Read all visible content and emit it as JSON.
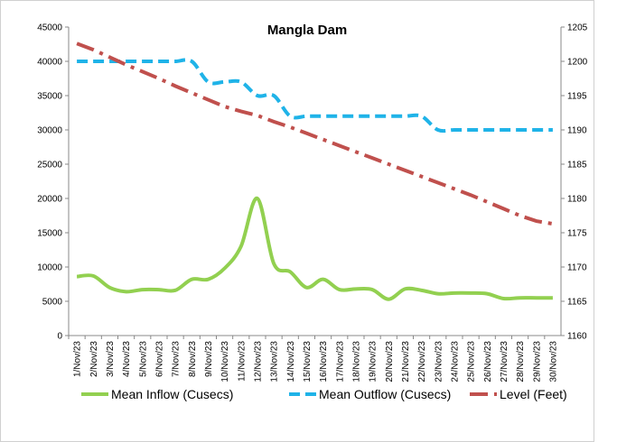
{
  "chart_data": {
    "type": "line",
    "title": "Mangla Dam",
    "categories": [
      "1/Nov/23",
      "2/Nov/23",
      "3/Nov/23",
      "4/Nov/23",
      "5/Nov/23",
      "6/Nov/23",
      "7/Nov/23",
      "8/Nov/23",
      "9/Nov/23",
      "10/Nov/23",
      "11/Nov/23",
      "12/Nov/23",
      "13/Nov/23",
      "14/Nov/23",
      "15/Nov/23",
      "16/Nov/23",
      "17/Nov/23",
      "18/Nov/23",
      "19/Nov/23",
      "20/Nov/23",
      "21/Nov/23",
      "22/Nov/23",
      "23/Nov/23",
      "24/Nov/23",
      "25/Nov/23",
      "26/Nov/23",
      "27/Nov/23",
      "28/Nov/23",
      "29/Nov/23",
      "30/Nov/23"
    ],
    "series": [
      {
        "name": "Mean Inflow (Cusecs)",
        "color": "#92d050",
        "dash": "none",
        "smooth": true,
        "values": [
          8600,
          8700,
          7000,
          6400,
          6700,
          6700,
          6600,
          8200,
          8200,
          9800,
          13000,
          20000,
          10500,
          9300,
          7000,
          8200,
          6700,
          6800,
          6700,
          5300,
          6800,
          6600,
          6100,
          6200,
          6200,
          6100,
          5400,
          5500,
          5500,
          5500
        ]
      },
      {
        "name": "Mean Outflow (Cusecs)",
        "color": "#1fb3e8",
        "dash": "12 6",
        "smooth": true,
        "values": [
          40000,
          40000,
          40000,
          40000,
          40000,
          40000,
          40000,
          40000,
          37000,
          37000,
          37000,
          35000,
          35000,
          32000,
          32000,
          32000,
          32000,
          32000,
          32000,
          32000,
          32000,
          32000,
          30000,
          30000,
          30000,
          30000,
          30000,
          30000,
          30000,
          30000
        ]
      },
      {
        "name": "Level (Feet)",
        "color": "#c0504d",
        "dash": "20 7 4 7",
        "smooth": false,
        "axis": "y2",
        "values": [
          1202.6,
          1201.7,
          1200.6,
          1199.5,
          1198.5,
          1197.5,
          1196.4,
          1195.4,
          1194.4,
          1193.4,
          1192.7,
          1192.1,
          1191.2,
          1190.4,
          1189.5,
          1188.6,
          1187.7,
          1186.8,
          1185.9,
          1185.0,
          1184.1,
          1183.2,
          1182.3,
          1181.4,
          1180.5,
          1179.5,
          1178.5,
          1177.5,
          1176.7,
          1176.3
        ]
      }
    ],
    "ylim": [
      0,
      45000
    ],
    "yticks": [
      0,
      5000,
      10000,
      15000,
      20000,
      25000,
      30000,
      35000,
      40000,
      45000
    ],
    "y2lim": [
      1160,
      1205
    ],
    "y2ticks": [
      1160,
      1165,
      1170,
      1175,
      1180,
      1185,
      1190,
      1195,
      1200,
      1205
    ],
    "legend": "bottom"
  }
}
